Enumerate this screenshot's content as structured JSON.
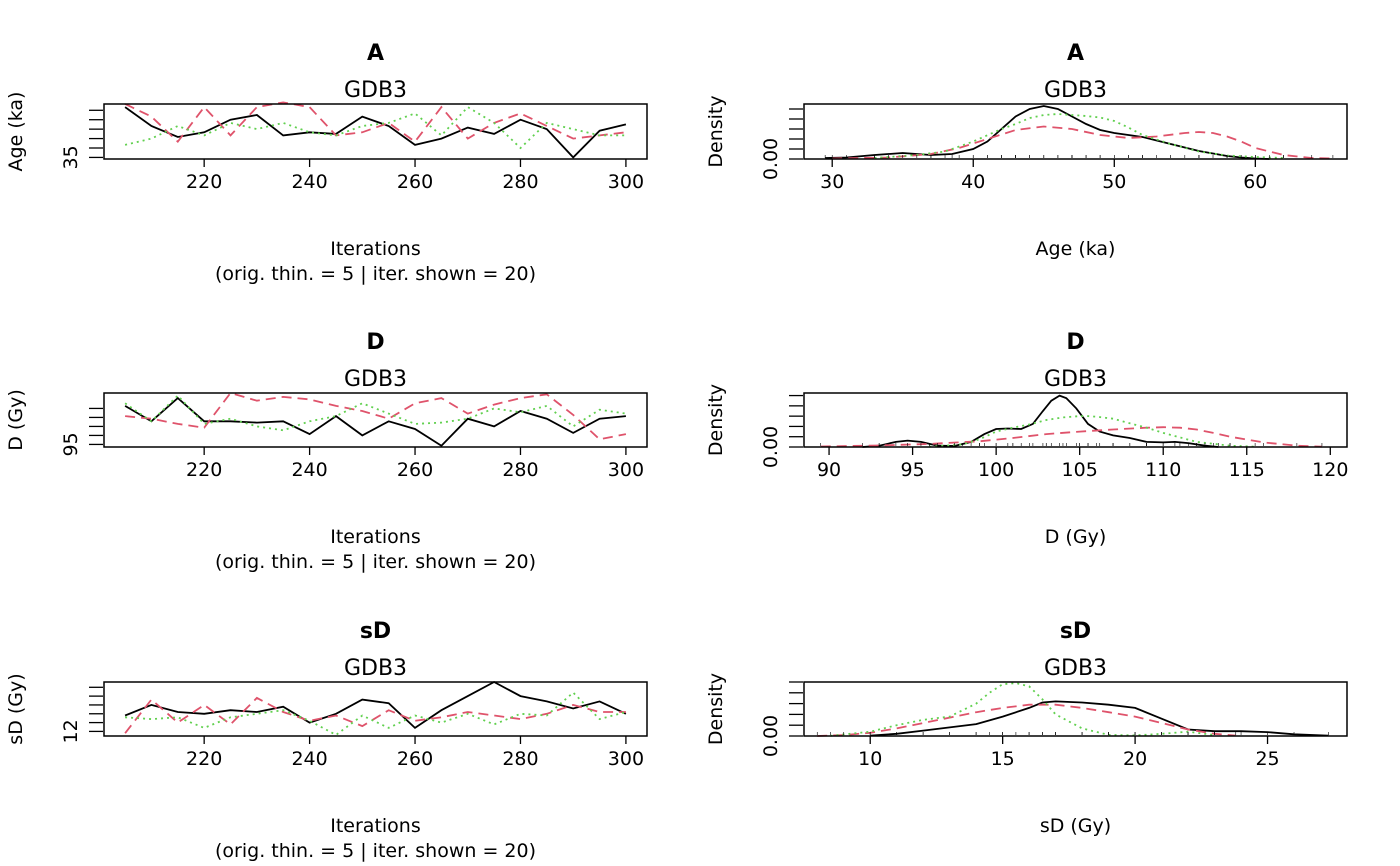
{
  "chart_data": [
    {
      "type": "line",
      "title": "A",
      "subtitle": "GDB3",
      "xlabel": "Iterations",
      "xlabel2": "(orig. thin. = 5 | iter. shown = 20)",
      "ylabel": "Age (ka)",
      "xlim": [
        201,
        304
      ],
      "ylim": [
        34.5,
        52
      ],
      "xticks": [
        220,
        240,
        260,
        280,
        300
      ],
      "yticks": [
        35,
        38,
        41,
        44,
        47,
        50
      ],
      "ytick_labels": [
        "35",
        "",
        "",
        "",
        "",
        ""
      ],
      "x": [
        205,
        210,
        215,
        220,
        225,
        230,
        235,
        240,
        245,
        250,
        255,
        260,
        265,
        270,
        275,
        280,
        285,
        290,
        295,
        300
      ],
      "series": [
        {
          "color": "#000000",
          "dash": "solid",
          "values": [
            51,
            45,
            41.5,
            43,
            47,
            48.5,
            42,
            43,
            42.5,
            48,
            45,
            39,
            41,
            44.5,
            42.5,
            47,
            44,
            35,
            43.5,
            45.5
          ]
        },
        {
          "color": "#df536b",
          "dash": "dashed",
          "values": [
            52,
            48,
            40,
            51,
            42,
            51,
            52.5,
            51,
            42,
            43,
            46,
            40,
            51,
            41,
            46,
            49,
            45,
            41,
            42,
            43
          ]
        },
        {
          "color": "#61d04f",
          "dash": "dotted",
          "values": [
            39,
            41,
            45,
            42,
            46,
            44,
            46,
            43,
            42,
            45,
            46,
            49,
            42,
            51,
            46,
            38,
            46,
            44,
            42,
            42
          ]
        }
      ]
    },
    {
      "type": "line",
      "title": "A",
      "subtitle": "GDB3",
      "xlabel": "Age (ka)",
      "ylabel": "Density",
      "xlim": [
        28,
        66.5
      ],
      "ylim": [
        0,
        0.11
      ],
      "xticks": [
        30,
        40,
        50,
        60
      ],
      "yticks": [
        0,
        0.02,
        0.04,
        0.06,
        0.08,
        0.1
      ],
      "ytick_labels": [
        "0.00",
        "",
        "",
        "",
        "",
        ""
      ],
      "series": [
        {
          "color": "#000000",
          "dash": "solid",
          "x": [
            29.5,
            31,
            33,
            35,
            37,
            38.5,
            40,
            41,
            42,
            43,
            44,
            45,
            46,
            47,
            48,
            49,
            50,
            52,
            54,
            56,
            58,
            59,
            60,
            61
          ],
          "values": [
            0.002,
            0.003,
            0.008,
            0.012,
            0.008,
            0.01,
            0.02,
            0.035,
            0.06,
            0.085,
            0.1,
            0.106,
            0.1,
            0.085,
            0.07,
            0.058,
            0.052,
            0.044,
            0.03,
            0.016,
            0.006,
            0.003,
            0.001,
            0
          ]
        },
        {
          "color": "#df536b",
          "dash": "dashed",
          "x": [
            30,
            34,
            37,
            39,
            41,
            43,
            45,
            47,
            49,
            51,
            53,
            55,
            56,
            57,
            58,
            59,
            60,
            62,
            64,
            65.5
          ],
          "values": [
            0.001,
            0.003,
            0.01,
            0.022,
            0.04,
            0.058,
            0.065,
            0.06,
            0.048,
            0.042,
            0.045,
            0.052,
            0.054,
            0.052,
            0.045,
            0.035,
            0.022,
            0.008,
            0.002,
            0.001
          ]
        },
        {
          "color": "#61d04f",
          "dash": "dotted",
          "x": [
            33,
            36,
            38,
            40,
            42,
            43,
            44,
            45,
            46,
            47,
            48,
            49,
            50,
            51,
            52,
            54,
            56,
            58,
            60,
            62
          ],
          "values": [
            0.002,
            0.008,
            0.015,
            0.035,
            0.06,
            0.07,
            0.082,
            0.088,
            0.09,
            0.088,
            0.086,
            0.083,
            0.076,
            0.063,
            0.048,
            0.03,
            0.015,
            0.007,
            0.004,
            0.002
          ]
        }
      ]
    },
    {
      "type": "line",
      "title": "D",
      "subtitle": "GDB3",
      "xlabel": "Iterations",
      "xlabel2": "(orig. thin. = 5 | iter. shown = 20)",
      "ylabel": "D (Gy)",
      "xlim": [
        201,
        304
      ],
      "ylim": [
        94,
        115
      ],
      "xticks": [
        220,
        240,
        260,
        280,
        300
      ],
      "yticks": [
        95,
        98.5,
        102,
        105.5,
        109
      ],
      "ytick_labels": [
        "95",
        "",
        "",
        "",
        ""
      ],
      "x": [
        205,
        210,
        215,
        220,
        225,
        230,
        235,
        240,
        245,
        250,
        255,
        260,
        265,
        270,
        275,
        280,
        285,
        290,
        295,
        300
      ],
      "series": [
        {
          "color": "#000000",
          "dash": "solid",
          "values": [
            110,
            104,
            113,
            104,
            104,
            103.5,
            104,
            99,
            106,
            98.5,
            104,
            101,
            94.5,
            105,
            102,
            108,
            105,
            99.5,
            105,
            106
          ]
        },
        {
          "color": "#df536b",
          "dash": "dashed",
          "values": [
            106,
            105,
            103,
            101.5,
            115,
            112,
            113.5,
            112.5,
            110,
            108,
            105,
            111,
            113,
            107,
            110.5,
            113,
            114.5,
            106.5,
            97,
            99
          ]
        },
        {
          "color": "#61d04f",
          "dash": "dotted",
          "values": [
            111,
            104,
            114,
            103,
            105,
            102,
            100.5,
            104,
            106,
            111,
            107,
            103,
            103.5,
            105,
            109,
            107.5,
            110,
            102,
            108.5,
            107
          ]
        }
      ]
    },
    {
      "type": "line",
      "title": "D",
      "subtitle": "GDB3",
      "xlabel": "D (Gy)",
      "ylabel": "Density",
      "xlim": [
        88.5,
        121
      ],
      "ylim": [
        0,
        0.21
      ],
      "xticks": [
        90,
        95,
        100,
        105,
        110,
        115,
        120
      ],
      "yticks": [
        0,
        0.04,
        0.08,
        0.12,
        0.16,
        0.2
      ],
      "ytick_labels": [
        "0.00",
        "",
        "",
        "",
        "",
        ""
      ],
      "series": [
        {
          "color": "#000000",
          "dash": "solid",
          "x": [
            92,
            93,
            94,
            94.7,
            95.5,
            96.5,
            97.5,
            98.5,
            99.3,
            100,
            100.7,
            101.5,
            102.2,
            102.8,
            103.3,
            103.8,
            104.2,
            104.8,
            105.5,
            106.2,
            107,
            108,
            109,
            110,
            110.7,
            111.5,
            112.5,
            113.3
          ],
          "values": [
            0,
            0.005,
            0.02,
            0.025,
            0.02,
            0.005,
            0.004,
            0.02,
            0.05,
            0.07,
            0.072,
            0.07,
            0.09,
            0.14,
            0.18,
            0.2,
            0.19,
            0.15,
            0.09,
            0.06,
            0.045,
            0.035,
            0.02,
            0.018,
            0.02,
            0.015,
            0.005,
            0
          ]
        },
        {
          "color": "#df536b",
          "dash": "dashed",
          "x": [
            89.5,
            93,
            96,
            99,
            101,
            103,
            105,
            107,
            109,
            110,
            111,
            112,
            113,
            114,
            116,
            118,
            119.5
          ],
          "values": [
            0.002,
            0.006,
            0.012,
            0.022,
            0.035,
            0.05,
            0.06,
            0.068,
            0.075,
            0.077,
            0.075,
            0.068,
            0.055,
            0.04,
            0.018,
            0.005,
            0.001
          ]
        },
        {
          "color": "#61d04f",
          "dash": "dotted",
          "x": [
            96,
            98,
            99,
            100,
            101,
            102,
            103,
            104,
            105,
            105.5,
            106,
            107,
            108,
            109,
            110,
            112,
            114,
            115.5
          ],
          "values": [
            0.001,
            0.01,
            0.03,
            0.06,
            0.075,
            0.088,
            0.105,
            0.115,
            0.12,
            0.12,
            0.118,
            0.11,
            0.092,
            0.075,
            0.055,
            0.02,
            0.005,
            0.001
          ]
        }
      ]
    },
    {
      "type": "line",
      "title": "sD",
      "subtitle": "GDB3",
      "xlabel": "Iterations",
      "xlabel2": "(orig. thin. = 5 | iter. shown = 20)",
      "ylabel": "sD (Gy)",
      "xlim": [
        201,
        304
      ],
      "ylim": [
        10.7,
        26
      ],
      "xticks": [
        220,
        240,
        260,
        280,
        300
      ],
      "yticks": [
        12,
        14.5,
        17,
        19.5,
        22,
        24.5
      ],
      "ytick_labels": [
        "12",
        "",
        "",
        "",
        "",
        ""
      ],
      "x": [
        205,
        210,
        215,
        220,
        225,
        230,
        235,
        240,
        245,
        250,
        255,
        260,
        265,
        270,
        275,
        280,
        285,
        290,
        295,
        300
      ],
      "series": [
        {
          "color": "#000000",
          "dash": "solid",
          "values": [
            16.5,
            19.5,
            17.5,
            17,
            18,
            17.5,
            19,
            14.5,
            17,
            21,
            20,
            13,
            18,
            22,
            26,
            22,
            20.5,
            18.5,
            20.5,
            17
          ]
        },
        {
          "color": "#df536b",
          "dash": "dashed",
          "values": [
            11.5,
            21,
            14.5,
            19.5,
            14,
            21.5,
            17.5,
            15,
            16.5,
            13.5,
            18,
            15,
            16,
            17.5,
            16.5,
            15.5,
            17,
            19.5,
            17.5,
            17.5
          ]
        },
        {
          "color": "#61d04f",
          "dash": "dotted",
          "values": [
            16,
            15.5,
            16,
            13,
            16,
            17,
            18,
            15,
            11,
            16.5,
            13,
            16.5,
            14.5,
            17,
            14,
            17,
            16.5,
            23,
            15.5,
            17.5
          ]
        }
      ]
    },
    {
      "type": "line",
      "title": "sD",
      "subtitle": "GDB3",
      "xlabel": "sD (Gy)",
      "ylabel": "Density",
      "xlim": [
        7.5,
        28
      ],
      "ylim": [
        0,
        0.25
      ],
      "xticks": [
        10,
        15,
        20,
        25
      ],
      "yticks": [
        0,
        0.05,
        0.1,
        0.15,
        0.2,
        0.25
      ],
      "ytick_labels": [
        "0.00",
        "",
        "",
        "",
        "",
        ""
      ],
      "series": [
        {
          "color": "#000000",
          "dash": "solid",
          "x": [
            10,
            11,
            12,
            13,
            14,
            15,
            16,
            16.5,
            17,
            18,
            19,
            20,
            21,
            22,
            23,
            24,
            25,
            26,
            27.3
          ],
          "values": [
            0.002,
            0.01,
            0.025,
            0.04,
            0.055,
            0.09,
            0.13,
            0.155,
            0.16,
            0.155,
            0.145,
            0.13,
            0.08,
            0.03,
            0.022,
            0.022,
            0.018,
            0.008,
            0.002
          ]
        },
        {
          "color": "#df536b",
          "dash": "dashed",
          "x": [
            8,
            9,
            10,
            11,
            12,
            13,
            14,
            15,
            16,
            17,
            18,
            19,
            20,
            21,
            22,
            23,
            23.8
          ],
          "values": [
            0,
            0.004,
            0.015,
            0.035,
            0.06,
            0.085,
            0.11,
            0.13,
            0.145,
            0.145,
            0.13,
            0.11,
            0.09,
            0.06,
            0.03,
            0.01,
            0.002
          ]
        },
        {
          "color": "#61d04f",
          "dash": "dotted",
          "x": [
            8.5,
            10,
            11,
            12,
            13,
            14,
            14.5,
            15,
            15.5,
            16,
            16.5,
            17,
            18,
            19,
            20,
            21,
            22,
            23
          ],
          "values": [
            0.001,
            0.02,
            0.05,
            0.075,
            0.09,
            0.15,
            0.2,
            0.24,
            0.245,
            0.23,
            0.17,
            0.1,
            0.035,
            0.005,
            0.003,
            0.01,
            0.02,
            0.004
          ]
        }
      ]
    }
  ]
}
